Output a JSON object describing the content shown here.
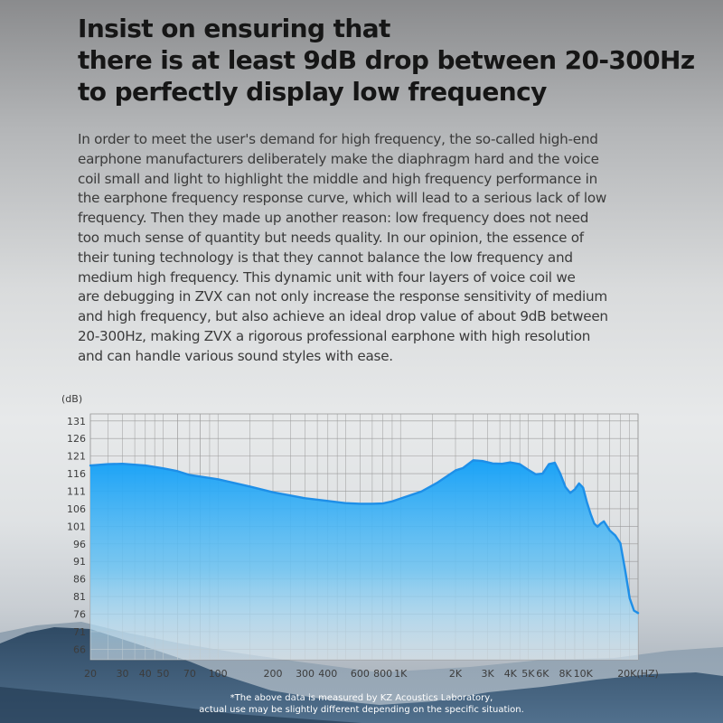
{
  "headline": [
    "Insist on ensuring that",
    "there is at least 9dB drop between 20-300Hz",
    "to perfectly display low frequency"
  ],
  "body_lines": [
    "In order to meet the user's demand for high frequency, the so-called high-end",
    "earphone manufacturers deliberately make the diaphragm hard and the voice",
    "coil small and light to highlight the middle and high frequency performance in",
    "the earphone frequency response curve, which will lead to a serious lack of low",
    "frequency. Then they made up another reason: low frequency does not need",
    "too much sense of quantity but needs quality. In our opinion, the essence of",
    "their tuning technology is that they cannot balance the low frequency and",
    "medium high frequency. This dynamic unit with four layers of voice coil we",
    "are debugging in ZVX can not only increase the response sensitivity of medium",
    "and high frequency, but also achieve an ideal drop value of about 9dB between",
    "20-300Hz, making ZVX a rigorous professional earphone with high resolution",
    "and can handle various sound styles with ease."
  ],
  "footnote": [
    "*The above data is measured by KZ Acoustics Laboratory,",
    "actual use may be slightly different depending on the specific situation."
  ],
  "colors": {
    "curve": "#1e8fe8",
    "fill_top": "#1aa0f6",
    "fill_bottom": "#d8eef9",
    "grid": "#9a9a9a"
  },
  "chart_data": {
    "type": "area",
    "ylabel": "(dB)",
    "xlabel": "",
    "x_scale": "log",
    "xlim": [
      20,
      20000
    ],
    "ylim": [
      63,
      133
    ],
    "y_ticks": [
      131,
      126,
      121,
      116,
      111,
      106,
      101,
      96,
      91,
      86,
      81,
      76,
      71,
      66
    ],
    "x_ticks": [
      {
        "value": 20,
        "label": "20"
      },
      {
        "value": 30,
        "label": "30"
      },
      {
        "value": 40,
        "label": "40"
      },
      {
        "value": 50,
        "label": "50"
      },
      {
        "value": 70,
        "label": "70"
      },
      {
        "value": 100,
        "label": "100"
      },
      {
        "value": 200,
        "label": "200"
      },
      {
        "value": 300,
        "label": "300"
      },
      {
        "value": 400,
        "label": "400"
      },
      {
        "value": 600,
        "label": "600"
      },
      {
        "value": 800,
        "label": "800"
      },
      {
        "value": 1000,
        "label": "1K"
      },
      {
        "value": 2000,
        "label": "2K"
      },
      {
        "value": 3000,
        "label": "3K"
      },
      {
        "value": 4000,
        "label": "4K"
      },
      {
        "value": 5000,
        "label": "5K"
      },
      {
        "value": 6000,
        "label": "6K"
      },
      {
        "value": 8000,
        "label": "8K"
      },
      {
        "value": 10000,
        "label": "10K"
      },
      {
        "value": 20000,
        "label": "20K(HZ)"
      }
    ],
    "grid": true,
    "series": [
      {
        "x": [
          20,
          25,
          30,
          40,
          50,
          60,
          70,
          100,
          150,
          200,
          300,
          400,
          500,
          600,
          700,
          800,
          900,
          1000,
          1300,
          1600,
          2000,
          2200,
          2500,
          2800,
          3200,
          3600,
          4000,
          4500,
          5000,
          5500,
          6000,
          6500,
          7000,
          7500,
          8000,
          8500,
          9000,
          9500,
          10000,
          10500,
          11000,
          11500,
          12000,
          12500,
          13000,
          14000,
          15000,
          16000,
          17000,
          18000,
          19000,
          20000
        ],
        "y": [
          118.3,
          118.7,
          118.8,
          118.3,
          117.5,
          116.7,
          115.6,
          114.4,
          112.3,
          110.7,
          109.0,
          108.2,
          107.6,
          107.4,
          107.4,
          107.5,
          108.1,
          108.9,
          110.9,
          113.5,
          116.9,
          117.6,
          119.8,
          119.6,
          118.9,
          118.8,
          119.2,
          118.7,
          117.1,
          115.8,
          116.0,
          118.7,
          119.1,
          116.0,
          112.2,
          110.5,
          111.5,
          113.2,
          112.0,
          107.8,
          104.5,
          101.8,
          100.9,
          101.8,
          102.4,
          99.8,
          98.4,
          96.2,
          88.5,
          80.5,
          77.0,
          76.3
        ]
      }
    ]
  }
}
